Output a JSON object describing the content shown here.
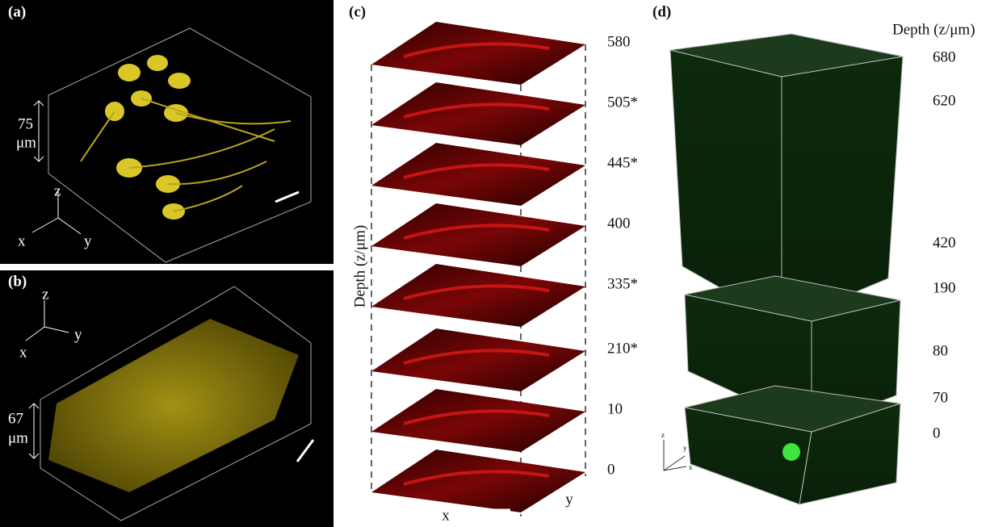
{
  "panel_a": {
    "label": "(a)",
    "height_label": [
      "75",
      "μm"
    ],
    "axes": {
      "z": "z",
      "x": "x",
      "y": "y"
    }
  },
  "panel_b": {
    "label": "(b)",
    "height_label": [
      "67",
      "μm"
    ],
    "axes": {
      "z": "z",
      "x": "x",
      "y": "y"
    }
  },
  "panel_c": {
    "label": "(c)",
    "depth_title": "Depth (z/μm)",
    "depths": [
      "580",
      "505*",
      "445*",
      "400",
      "335*",
      "210*",
      "10",
      "0"
    ],
    "x_label": "x",
    "y_label": "y"
  },
  "panel_d": {
    "label": "(d)",
    "depth_title": "Depth (z/μm)",
    "depths": [
      "680",
      "620",
      "420",
      "190",
      "80",
      "70",
      "0"
    ],
    "axes": {
      "z": "z",
      "x": "x",
      "y": "y"
    }
  }
}
